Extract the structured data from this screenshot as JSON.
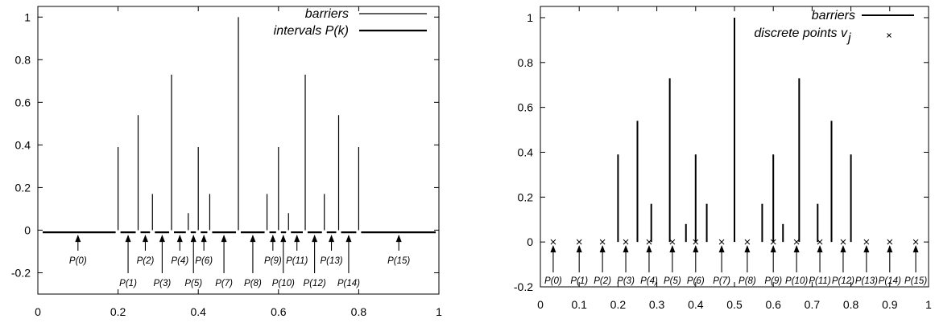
{
  "chart_data": [
    {
      "type": "line",
      "title": "",
      "xlabel": "",
      "ylabel": "",
      "xlim": [
        0,
        1
      ],
      "ylim": [
        -0.3,
        1.05
      ],
      "x_ticks": [
        0,
        0.2,
        0.4,
        0.6,
        0.8,
        1
      ],
      "x_tick_labels": [
        "0",
        "0.2",
        "0.4",
        "0.6",
        "0.8",
        "1"
      ],
      "y_ticks": [
        -0.2,
        0,
        0.2,
        0.4,
        0.6,
        0.8,
        1
      ],
      "y_tick_labels": [
        "-0.2",
        "0",
        "0.2",
        "0.4",
        "0.6",
        "0.8",
        "1"
      ],
      "legend": [
        "barriers",
        "intervals P(k)"
      ],
      "legend_position": "top-right",
      "barriers": [
        {
          "x": 0.2,
          "h": 0.39
        },
        {
          "x": 0.25,
          "h": 0.54
        },
        {
          "x": 0.2857,
          "h": 0.17
        },
        {
          "x": 0.3333,
          "h": 0.73
        },
        {
          "x": 0.375,
          "h": 0.08
        },
        {
          "x": 0.4,
          "h": 0.39
        },
        {
          "x": 0.4286,
          "h": 0.17
        },
        {
          "x": 0.5,
          "h": 1.0
        },
        {
          "x": 0.5714,
          "h": 0.17
        },
        {
          "x": 0.6,
          "h": 0.39
        },
        {
          "x": 0.625,
          "h": 0.08
        },
        {
          "x": 0.6667,
          "h": 0.73
        },
        {
          "x": 0.7143,
          "h": 0.17
        },
        {
          "x": 0.75,
          "h": 0.54
        },
        {
          "x": 0.8,
          "h": 0.39
        }
      ],
      "interval_y": -0.01,
      "intervals": [
        {
          "label": "P(0)",
          "x": 0.1,
          "level": "upper"
        },
        {
          "label": "P(1)",
          "x": 0.225,
          "level": "lower"
        },
        {
          "label": "P(2)",
          "x": 0.268,
          "level": "upper"
        },
        {
          "label": "P(3)",
          "x": 0.31,
          "level": "lower"
        },
        {
          "label": "P(4)",
          "x": 0.354,
          "level": "upper"
        },
        {
          "label": "P(5)",
          "x": 0.388,
          "level": "lower"
        },
        {
          "label": "P(6)",
          "x": 0.414,
          "level": "upper"
        },
        {
          "label": "P(7)",
          "x": 0.464,
          "level": "lower"
        },
        {
          "label": "P(8)",
          "x": 0.536,
          "level": "lower"
        },
        {
          "label": "P(9)",
          "x": 0.586,
          "level": "upper"
        },
        {
          "label": "P(10)",
          "x": 0.612,
          "level": "lower"
        },
        {
          "label": "P(11)",
          "x": 0.646,
          "level": "upper"
        },
        {
          "label": "P(12)",
          "x": 0.69,
          "level": "lower"
        },
        {
          "label": "P(13)",
          "x": 0.732,
          "level": "upper"
        },
        {
          "label": "P(14)",
          "x": 0.775,
          "level": "lower"
        },
        {
          "label": "P(15)",
          "x": 0.9,
          "level": "upper"
        }
      ]
    },
    {
      "type": "scatter",
      "title": "",
      "xlabel": "",
      "ylabel": "",
      "xlim": [
        0,
        1
      ],
      "ylim": [
        -0.2,
        1.05
      ],
      "x_ticks": [
        0,
        0.1,
        0.2,
        0.3,
        0.4,
        0.5,
        0.6,
        0.7,
        0.8,
        0.9,
        1
      ],
      "x_tick_labels": [
        "0",
        "0.1",
        "0.2",
        "0.3",
        "0.4",
        "0.5",
        "0.6",
        "0.7",
        "0.8",
        "0.9",
        "1"
      ],
      "y_ticks": [
        -0.2,
        0,
        0.2,
        0.4,
        0.6,
        0.8,
        1
      ],
      "y_tick_labels": [
        "-0.2",
        "0",
        "0.2",
        "0.4",
        "0.6",
        "0.8",
        "1"
      ],
      "legend": [
        "barriers",
        "discrete points v",
        "j"
      ],
      "legend_position": "top-right",
      "barriers": [
        {
          "x": 0.2,
          "h": 0.39
        },
        {
          "x": 0.25,
          "h": 0.54
        },
        {
          "x": 0.2857,
          "h": 0.17
        },
        {
          "x": 0.3333,
          "h": 0.73
        },
        {
          "x": 0.375,
          "h": 0.08
        },
        {
          "x": 0.4,
          "h": 0.39
        },
        {
          "x": 0.4286,
          "h": 0.17
        },
        {
          "x": 0.5,
          "h": 1.0
        },
        {
          "x": 0.5714,
          "h": 0.17
        },
        {
          "x": 0.6,
          "h": 0.39
        },
        {
          "x": 0.625,
          "h": 0.08
        },
        {
          "x": 0.6667,
          "h": 0.73
        },
        {
          "x": 0.7143,
          "h": 0.17
        },
        {
          "x": 0.75,
          "h": 0.54
        },
        {
          "x": 0.8,
          "h": 0.39
        }
      ],
      "points_y": 0,
      "points": [
        {
          "label": "P(0)",
          "x": 0.033
        },
        {
          "label": "P(1)",
          "x": 0.1
        },
        {
          "label": "P(2)",
          "x": 0.16
        },
        {
          "label": "P(3)",
          "x": 0.22
        },
        {
          "label": "P(4)",
          "x": 0.28
        },
        {
          "label": "P(5)",
          "x": 0.34
        },
        {
          "label": "P(6)",
          "x": 0.4
        },
        {
          "label": "P(7)",
          "x": 0.467
        },
        {
          "label": "P(8)",
          "x": 0.533
        },
        {
          "label": "P(9)",
          "x": 0.6
        },
        {
          "label": "P(10)",
          "x": 0.66
        },
        {
          "label": "P(11)",
          "x": 0.72
        },
        {
          "label": "P(12)",
          "x": 0.78
        },
        {
          "label": "P(13)",
          "x": 0.84
        },
        {
          "label": "P(14)",
          "x": 0.9
        },
        {
          "label": "P(15)",
          "x": 0.967
        }
      ]
    }
  ]
}
